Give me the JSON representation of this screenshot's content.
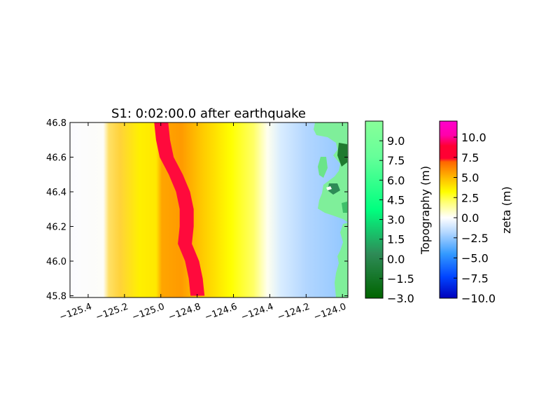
{
  "chart_data": {
    "type": "heatmap",
    "title": "S1: 0:02:00.0 after earthquake",
    "xlim": [
      -125.5,
      -123.97
    ],
    "ylim": [
      45.79,
      46.8
    ],
    "xticks": [
      -125.4,
      -125.2,
      -125.0,
      -124.8,
      -124.6,
      -124.4,
      -124.2,
      -124.0
    ],
    "xtick_labels": [
      "−125.4",
      "−125.2",
      "−125.0",
      "−124.8",
      "−124.6",
      "−124.4",
      "−124.2",
      "−124.0"
    ],
    "yticks": [
      45.8,
      46.0,
      46.2,
      46.4,
      46.6,
      46.8
    ],
    "ytick_labels": [
      "45.8",
      "46.0",
      "46.2",
      "46.4",
      "46.6",
      "46.8"
    ],
    "grid": false,
    "zeta_field": {
      "wave_crest_lon": [
        [
          45.8,
          -124.79
        ],
        [
          45.9,
          -124.8
        ],
        [
          46.0,
          -124.82
        ],
        [
          46.1,
          -124.86
        ],
        [
          46.2,
          -124.85
        ],
        [
          46.3,
          -124.85
        ],
        [
          46.4,
          -124.87
        ],
        [
          46.5,
          -124.91
        ],
        [
          46.6,
          -124.96
        ],
        [
          46.7,
          -124.98
        ],
        [
          46.8,
          -124.99
        ]
      ],
      "crest_value": 8.5,
      "leading_edge_lon": -124.35,
      "trailing_edge_lon": -125.2,
      "offshore_value": -2.5
    },
    "colorbars": [
      {
        "label": "Topography (m)",
        "min": -3.0,
        "max": 10.5,
        "ticks": [
          -3.0,
          -1.5,
          0.0,
          1.5,
          3.0,
          4.5,
          6.0,
          7.5,
          9.0
        ],
        "tick_labels": [
          "−3.0",
          "−1.5",
          "0.0",
          "1.5",
          "3.0",
          "4.5",
          "6.0",
          "7.5",
          "9.0"
        ],
        "colors": [
          "#006400",
          "#2e8b57",
          "#00ff7f",
          "#7fff7f",
          "#90ff90"
        ]
      },
      {
        "label": "zeta (m)",
        "min": -10.0,
        "max": 12.0,
        "ticks": [
          -10.0,
          -7.5,
          -5.0,
          -2.5,
          0.0,
          2.5,
          5.0,
          7.5,
          10.0
        ],
        "tick_labels": [
          "−10.0",
          "−7.5",
          "−5.0",
          "−2.5",
          "0.0",
          "2.5",
          "5.0",
          "7.5",
          "10.0"
        ],
        "colors": [
          "#0000bb",
          "#0066ff",
          "#66b2ff",
          "#ffffff",
          "#ffff00",
          "#ffa500",
          "#ff0033",
          "#ff00cc"
        ]
      }
    ]
  }
}
